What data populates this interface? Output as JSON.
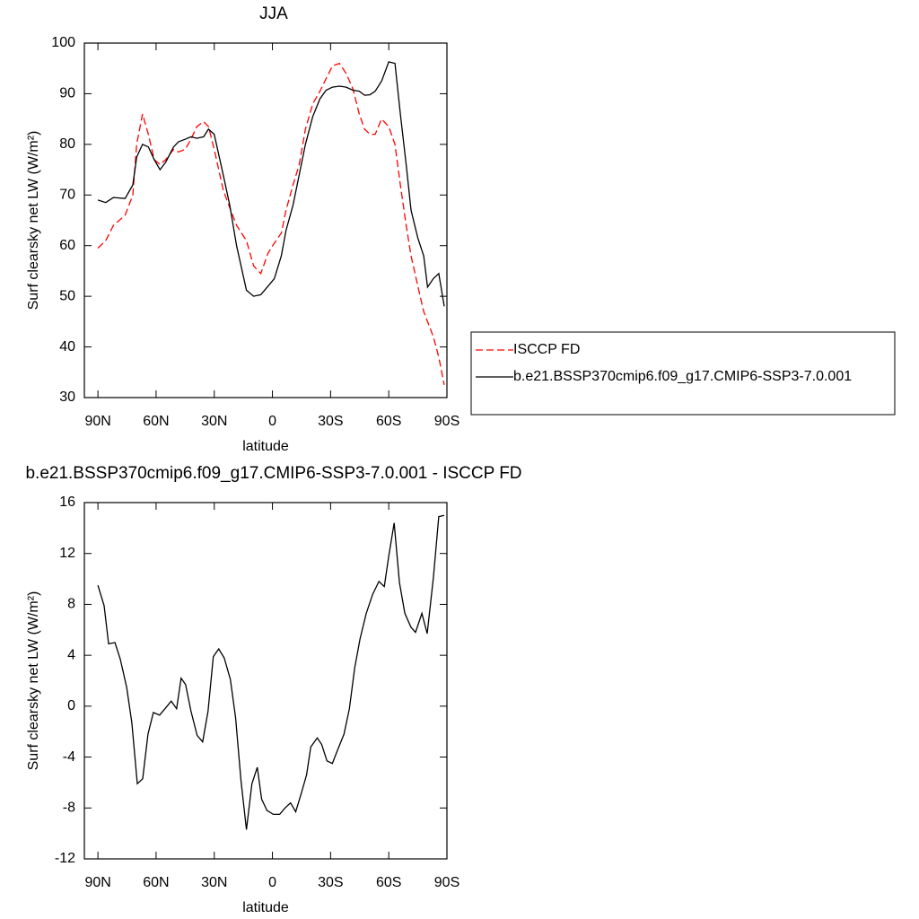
{
  "chart_data": [
    {
      "type": "line",
      "title": "JJA",
      "x_label": "latitude",
      "y_label": "Surf clearsky net LW (W/m²)",
      "x": [
        90,
        86,
        82,
        76,
        72,
        70,
        67,
        64,
        61,
        58,
        55,
        51,
        48.5,
        45,
        42,
        39,
        35.5,
        33,
        30,
        25.4,
        22,
        18.5,
        13.4,
        9.7,
        6,
        2.3,
        -1,
        -4.6,
        -7,
        -10.6,
        -13.8,
        -17,
        -20.8,
        -24.5,
        -27.7,
        -31,
        -34.6,
        -38,
        -41.5,
        -44.8,
        -47.5,
        -50.3,
        -53,
        -56.3,
        -60,
        -63.2,
        -66,
        -69,
        -71.5,
        -75,
        -78,
        -80,
        -83,
        -85.8,
        -88.6
      ],
      "series": [
        {
          "name": "ISCCP FD",
          "color": "#ff0000",
          "dash": true,
          "values": [
            59.5,
            61,
            64,
            66,
            70,
            80,
            86,
            82,
            77,
            76,
            77,
            79,
            78.5,
            79,
            81,
            83.5,
            84.5,
            83.5,
            79,
            71,
            67.5,
            64,
            61,
            56,
            54.5,
            58.5,
            60.5,
            62.5,
            67,
            72,
            76,
            83,
            88,
            90.5,
            93,
            95.5,
            96,
            94,
            91,
            86,
            83,
            82,
            82,
            85,
            83.5,
            80,
            72,
            64,
            58,
            52,
            47,
            45,
            42,
            38,
            32.5
          ]
        },
        {
          "name": "b.e21.BSSP370cmip6.f09_g17.CMIP6-SSP3-7.0.001",
          "color": "#000000",
          "dash": false,
          "values": [
            69,
            68.5,
            69.5,
            69.3,
            72,
            77.5,
            80,
            79.5,
            77,
            75,
            76.5,
            79.5,
            80.5,
            81,
            81.5,
            81.2,
            81.5,
            83,
            82,
            74,
            68,
            60,
            51.2,
            50,
            50.3,
            52,
            53.5,
            58,
            63,
            68,
            74,
            80,
            85.5,
            89,
            90.7,
            91.3,
            91.5,
            91.3,
            90.7,
            90.5,
            89.7,
            89.8,
            90.5,
            92.5,
            96.3,
            96,
            86,
            76,
            67,
            61.5,
            58,
            51.8,
            53.5,
            54.5,
            48
          ]
        }
      ],
      "xlim": [
        97,
        -90
      ],
      "xticks": [
        {
          "value": 90,
          "label": "90N"
        },
        {
          "value": 60,
          "label": "60N"
        },
        {
          "value": 30,
          "label": "30N"
        },
        0,
        {
          "value": -30,
          "label": "30S"
        },
        {
          "value": -60,
          "label": "60S"
        },
        {
          "value": -90,
          "label": "90S"
        }
      ],
      "ylim": [
        30,
        100
      ],
      "yticks": [
        30,
        40,
        50,
        60,
        70,
        80,
        90,
        100
      ],
      "legend": "right"
    },
    {
      "type": "line",
      "title": "b.e21.BSSP370cmip6.f09_g17.CMIP6-SSP3-7.0.001 - ISCCP FD",
      "x_label": "latitude",
      "y_label": "Surf clearsky net LW (W/m²)",
      "x": [
        90,
        86.8,
        84.5,
        81.2,
        78.5,
        75.2,
        72.5,
        69.7,
        66.9,
        64.2,
        61.4,
        58.2,
        54.9,
        52.2,
        49.4,
        47.1,
        44.8,
        42,
        38.8,
        36,
        33.2,
        30.5,
        27.7,
        24.9,
        21.7,
        19,
        16.2,
        13.4,
        10.6,
        7.8,
        5.6,
        2.8,
        -0.5,
        -3.7,
        -6.5,
        -9.3,
        -12,
        -14.8,
        -17.6,
        -19.8,
        -23.1,
        -25.4,
        -28.1,
        -30.9,
        -33.7,
        -36.9,
        -39.7,
        -42.4,
        -45.2,
        -48.4,
        -51.7,
        -54.9,
        -57.7,
        -60,
        -62.8,
        -65.5,
        -68.3,
        -71.5,
        -73.8,
        -77.1,
        -79.8,
        -83,
        -85.8,
        -88.6
      ],
      "series": [
        {
          "color": "#000000",
          "dash": false,
          "values": [
            9.5,
            7.9,
            4.9,
            5,
            3.7,
            1.5,
            -1.3,
            -6.1,
            -5.7,
            -2.2,
            -0.5,
            -0.7,
            -0.1,
            0.4,
            -0.2,
            2.2,
            1.7,
            -0.4,
            -2.3,
            -2.8,
            -0.4,
            3.9,
            4.5,
            3.8,
            2.1,
            -0.9,
            -5.9,
            -9.7,
            -6.1,
            -4.8,
            -7.3,
            -8.2,
            -8.5,
            -8.5,
            -8,
            -7.6,
            -8.3,
            -6.9,
            -5.4,
            -3.2,
            -2.5,
            -3,
            -4.3,
            -4.5,
            -3.4,
            -2.2,
            -0.2,
            3,
            5.3,
            7.3,
            8.8,
            9.8,
            9.4,
            11.8,
            14.4,
            9.7,
            7.3,
            6.2,
            5.8,
            7.3,
            5.7,
            10.1,
            14.9,
            15
          ]
        }
      ],
      "xlim": [
        97,
        -90
      ],
      "xticks": [
        {
          "value": 90,
          "label": "90N"
        },
        {
          "value": 60,
          "label": "60N"
        },
        {
          "value": 30,
          "label": "30N"
        },
        0,
        {
          "value": -30,
          "label": "30S"
        },
        {
          "value": -60,
          "label": "60S"
        },
        {
          "value": -90,
          "label": "90S"
        }
      ],
      "ylim": [
        -12,
        16
      ],
      "yticks": [
        -12,
        -8,
        -4,
        0,
        4,
        8,
        12,
        16
      ]
    }
  ]
}
